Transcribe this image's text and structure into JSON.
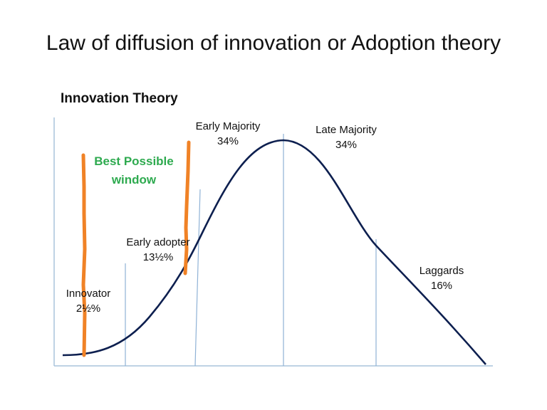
{
  "title": "Law of diffusion of innovation or Adoption theory",
  "subtitle": "Innovation Theory",
  "segments": {
    "innovator": {
      "name": "Innovator",
      "pct": "2½%"
    },
    "early_adopter": {
      "name": "Early adopter",
      "pct": "13½%"
    },
    "early_majority": {
      "name": "Early Majority",
      "pct": "34%"
    },
    "late_majority": {
      "name": "Late Majority",
      "pct": "34%"
    },
    "laggards": {
      "name": "Laggards",
      "pct": "16%"
    }
  },
  "annotation": {
    "line1": "Best Possible",
    "line2": "window"
  },
  "colors": {
    "curve": "#0d1f4f",
    "axis": "#a9c3dc",
    "divider": "#8fb2d6",
    "highlight": "#f08226",
    "annotation": "#2eaa4f"
  }
}
